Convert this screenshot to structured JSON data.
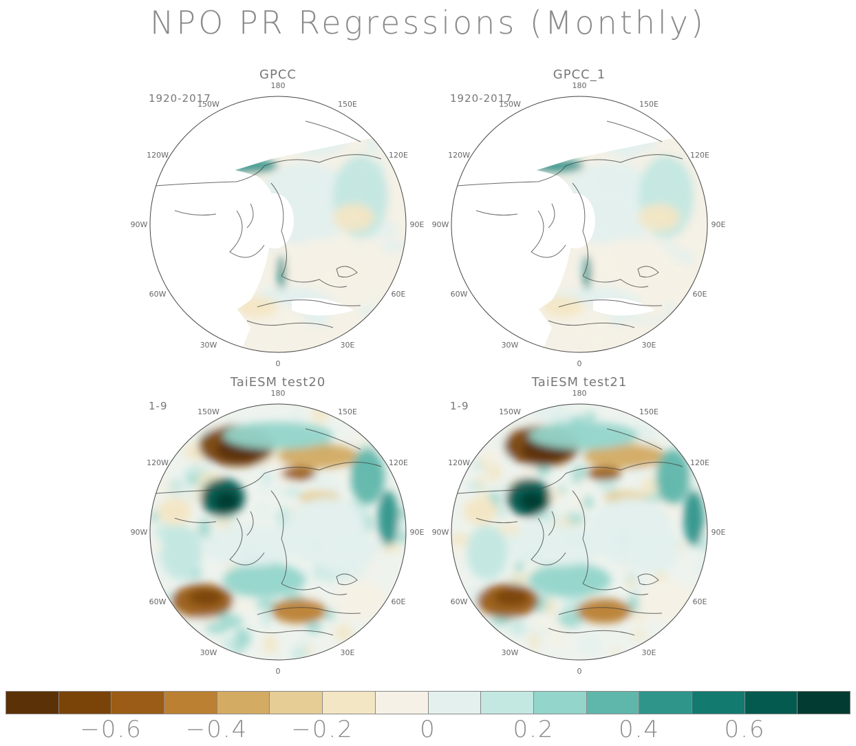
{
  "title": "NPO PR Regressions (Monthly)",
  "panels": [
    {
      "name": "GPCC",
      "period": "1920-2017",
      "style": "obs"
    },
    {
      "name": "GPCC_1",
      "period": "1920-2017",
      "style": "obs"
    },
    {
      "name": "TaiESM test20",
      "period": "1-9",
      "style": "model"
    },
    {
      "name": "TaiESM test21",
      "period": "1-9",
      "style": "model"
    }
  ],
  "longitude_labels": [
    "180",
    "150E",
    "120E",
    "90E",
    "60E",
    "30E",
    "0",
    "30W",
    "60W",
    "90W",
    "120W",
    "150W"
  ],
  "colorbar": {
    "colors": [
      "#5b3207",
      "#7a4408",
      "#9a5c16",
      "#bb8032",
      "#d3ab63",
      "#e6cd96",
      "#f3e6c4",
      "#f5f1e6",
      "#e3f0ee",
      "#c3e7e1",
      "#93d5cb",
      "#5fb6ab",
      "#2f958b",
      "#137a6f",
      "#045a4f",
      "#013b32"
    ],
    "tick_labels": [
      "−0.6",
      "−0.4",
      "−0.2",
      "0",
      "0.2",
      "0.4",
      "0.6"
    ]
  }
}
